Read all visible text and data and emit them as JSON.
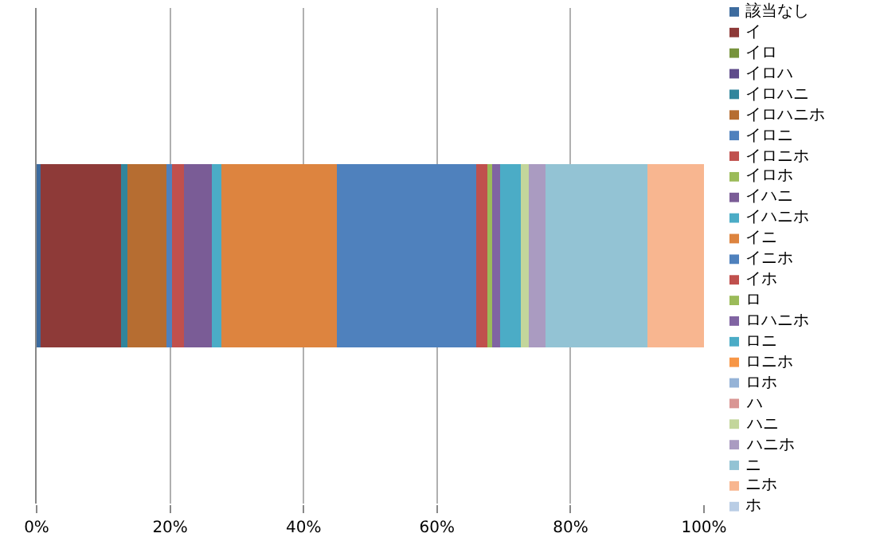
{
  "chart_data": {
    "type": "bar",
    "orientation": "horizontal",
    "stacked": true,
    "categories": [
      null
    ],
    "series": [
      {
        "name": "該当なし",
        "color": "#3d6b9e",
        "values": [
          0.6
        ]
      },
      {
        "name": "イ",
        "color": "#8e3a38",
        "values": [
          12.0
        ]
      },
      {
        "name": "イロ",
        "color": "#77933c",
        "values": [
          0
        ]
      },
      {
        "name": "イロハ",
        "color": "#5f4b8b",
        "values": [
          0
        ]
      },
      {
        "name": "イロハニ",
        "color": "#31859c",
        "values": [
          1.0
        ]
      },
      {
        "name": "イロハニホ",
        "color": "#b66d31",
        "values": [
          5.9
        ]
      },
      {
        "name": "イロニ",
        "color": "#4f81bd",
        "values": [
          0.8
        ]
      },
      {
        "name": "イロニホ",
        "color": "#c0504d",
        "values": [
          1.8
        ]
      },
      {
        "name": "イロホ",
        "color": "#9bbb59",
        "values": [
          0
        ]
      },
      {
        "name": "イハニ",
        "color": "#7a5c96",
        "values": [
          4.2
        ]
      },
      {
        "name": "イハニホ",
        "color": "#4bacc6",
        "values": [
          1.4
        ]
      },
      {
        "name": "イニ",
        "color": "#dd843f",
        "values": [
          17.3
        ]
      },
      {
        "name": "イニホ",
        "color": "#4f81bd",
        "values": [
          20.9
        ]
      },
      {
        "name": "イホ",
        "color": "#c0504d",
        "values": [
          1.7
        ]
      },
      {
        "name": "ロ",
        "color": "#9bbb59",
        "values": [
          0.7
        ]
      },
      {
        "name": "ロハニホ",
        "color": "#8064a2",
        "values": [
          1.2
        ]
      },
      {
        "name": "ロニ",
        "color": "#4bacc6",
        "values": [
          3.1
        ]
      },
      {
        "name": "ロニホ",
        "color": "#f79646",
        "values": [
          0
        ]
      },
      {
        "name": "ロホ",
        "color": "#95b3d7",
        "values": [
          0
        ]
      },
      {
        "name": "ハ",
        "color": "#d99694",
        "values": [
          0
        ]
      },
      {
        "name": "ハニ",
        "color": "#c3d69b",
        "values": [
          1.1
        ]
      },
      {
        "name": "ハニホ",
        "color": "#aa9bc1",
        "values": [
          2.5
        ]
      },
      {
        "name": "ニ",
        "color": "#93c3d4",
        "values": [
          15.3
        ]
      },
      {
        "name": "ニホ",
        "color": "#f8b690",
        "values": [
          8.5
        ]
      },
      {
        "name": "ホ",
        "color": "#b9cde5",
        "values": [
          0
        ]
      }
    ],
    "xlim": [
      0,
      100
    ],
    "xticks": [
      {
        "value": 0,
        "label": "0%"
      },
      {
        "value": 20,
        "label": "20%"
      },
      {
        "value": 40,
        "label": "40%"
      },
      {
        "value": 60,
        "label": "60%"
      },
      {
        "value": 80,
        "label": "80%"
      },
      {
        "value": 100,
        "label": "100%"
      }
    ],
    "grid": "x",
    "legend": "right"
  }
}
